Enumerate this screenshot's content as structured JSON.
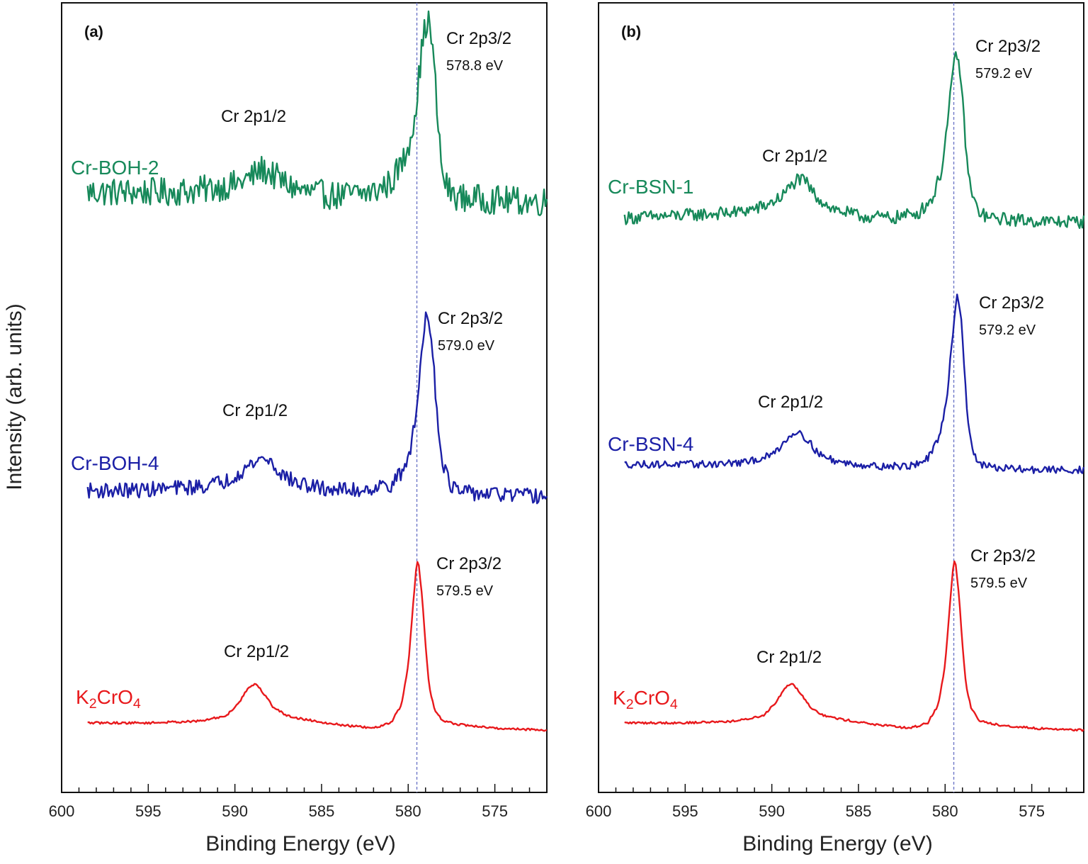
{
  "figure": {
    "ylabel": "Intensity (arb. units)"
  },
  "chart_data": [
    {
      "panel_label": "(a)",
      "type": "line",
      "xlabel": "Binding Energy (eV)",
      "ylabel": "Intensity (arb. units)",
      "xlim": [
        600,
        572
      ],
      "x_reversed": true,
      "xticks": [
        600,
        595,
        590,
        585,
        580,
        575
      ],
      "minor_tick_step": 1,
      "reference_line_x": 579.5,
      "y_ticks_shown": false,
      "grid": false,
      "series": [
        {
          "name": "Cr-BOH-2",
          "color": "#17895a",
          "noise": 0.075,
          "offset": 2.05,
          "x": [
            598.5,
            596,
            594,
            592,
            590,
            589,
            588.5,
            588,
            587,
            586,
            584,
            582,
            581,
            580.2,
            579.8,
            579.5,
            579.3,
            579.1,
            578.9,
            578.8,
            578.6,
            578.4,
            578.2,
            578,
            577.6,
            577,
            575,
            573,
            572
          ],
          "y": [
            0.1,
            0.1,
            0.1,
            0.11,
            0.14,
            0.18,
            0.22,
            0.2,
            0.14,
            0.1,
            0.08,
            0.1,
            0.15,
            0.28,
            0.42,
            0.58,
            0.78,
            0.92,
            1.0,
            0.98,
            0.86,
            0.62,
            0.35,
            0.18,
            0.1,
            0.07,
            0.06,
            0.05,
            0.05
          ],
          "peaks": [
            {
              "label": "Cr 2p1/2",
              "value": ""
            },
            {
              "label": "Cr 2p3/2",
              "value": "578.8 eV"
            }
          ]
        },
        {
          "name": "Cr-BOH-4",
          "color": "#1b1fa6",
          "noise": 0.04,
          "offset": 1.0,
          "x": [
            598.5,
            596,
            594,
            592,
            590.5,
            589.5,
            588.5,
            588,
            587.5,
            586.5,
            585,
            583,
            581,
            580.2,
            579.8,
            579.5,
            579.3,
            579.1,
            579,
            578.9,
            578.7,
            578.5,
            578.3,
            578,
            577.6,
            577,
            575,
            573,
            572
          ],
          "y": [
            0.03,
            0.03,
            0.04,
            0.05,
            0.08,
            0.14,
            0.2,
            0.19,
            0.13,
            0.07,
            0.04,
            0.03,
            0.06,
            0.14,
            0.28,
            0.46,
            0.68,
            0.86,
            0.95,
            0.96,
            0.88,
            0.66,
            0.38,
            0.18,
            0.06,
            0.02,
            0.01,
            0.0,
            0.0
          ],
          "peaks": [
            {
              "label": "Cr 2p1/2",
              "value": ""
            },
            {
              "label": "Cr 2p3/2",
              "value": "579.0 eV"
            }
          ]
        },
        {
          "name": "K2CrO4",
          "color": "#e8191c",
          "noise": 0.006,
          "offset": 0.0,
          "x": [
            598.5,
            595,
            592,
            590.5,
            589.8,
            589.2,
            588.8,
            588.3,
            587.8,
            587,
            586,
            584,
            582,
            581,
            580.4,
            580,
            579.8,
            579.6,
            579.5,
            579.4,
            579.2,
            579,
            578.8,
            578.5,
            578,
            577,
            575,
            572
          ],
          "y": [
            0.04,
            0.04,
            0.05,
            0.08,
            0.15,
            0.24,
            0.26,
            0.2,
            0.13,
            0.08,
            0.06,
            0.03,
            0.01,
            0.04,
            0.14,
            0.36,
            0.6,
            0.84,
            0.94,
            0.93,
            0.75,
            0.48,
            0.25,
            0.12,
            0.05,
            0.03,
            0.01,
            0.0
          ],
          "peaks": [
            {
              "label": "Cr 2p1/2",
              "value": ""
            },
            {
              "label": "Cr 2p3/2",
              "value": "579.5 eV"
            }
          ]
        }
      ]
    },
    {
      "panel_label": "(b)",
      "type": "line",
      "xlabel": "Binding Energy (eV)",
      "ylabel": "Intensity (arb. units)",
      "xlim": [
        600,
        572
      ],
      "x_reversed": true,
      "xticks": [
        600,
        595,
        590,
        585,
        580,
        575
      ],
      "minor_tick_step": 1,
      "reference_line_x": 579.5,
      "y_ticks_shown": false,
      "grid": false,
      "series": [
        {
          "name": "Cr-BSN-1",
          "color": "#17895a",
          "noise": 0.035,
          "offset": 2.0,
          "x": [
            598.5,
            596,
            594,
            592,
            590.5,
            589.5,
            589,
            588.5,
            588,
            587.5,
            586.5,
            585,
            583,
            581.5,
            580.7,
            580.2,
            579.9,
            579.6,
            579.4,
            579.3,
            579.1,
            578.9,
            578.7,
            578.4,
            578,
            577.5,
            576,
            574,
            572
          ],
          "y": [
            0.04,
            0.05,
            0.06,
            0.07,
            0.1,
            0.15,
            0.2,
            0.25,
            0.23,
            0.16,
            0.09,
            0.05,
            0.04,
            0.07,
            0.15,
            0.3,
            0.52,
            0.78,
            0.92,
            0.92,
            0.8,
            0.55,
            0.3,
            0.14,
            0.07,
            0.04,
            0.03,
            0.02,
            0.02
          ],
          "peaks": [
            {
              "label": "Cr 2p1/2",
              "value": ""
            },
            {
              "label": "Cr 2p3/2",
              "value": "579.2 eV"
            }
          ]
        },
        {
          "name": "Cr-BSN-4",
          "color": "#1b1fa6",
          "noise": 0.02,
          "offset": 1.0,
          "x": [
            598.5,
            596,
            594,
            591.5,
            590,
            589.3,
            588.8,
            588.4,
            588,
            587.5,
            587,
            586,
            584,
            582,
            581,
            580.3,
            579.9,
            579.6,
            579.4,
            579.3,
            579.1,
            578.9,
            578.7,
            578.4,
            578,
            577,
            575,
            572
          ],
          "y": [
            0.05,
            0.05,
            0.05,
            0.06,
            0.1,
            0.17,
            0.22,
            0.23,
            0.19,
            0.13,
            0.09,
            0.06,
            0.04,
            0.04,
            0.08,
            0.2,
            0.42,
            0.72,
            0.93,
            0.97,
            0.88,
            0.6,
            0.3,
            0.12,
            0.05,
            0.03,
            0.02,
            0.02
          ],
          "peaks": [
            {
              "label": "Cr 2p1/2",
              "value": ""
            },
            {
              "label": "Cr 2p3/2",
              "value": "579.2 eV"
            }
          ]
        },
        {
          "name": "K2CrO4",
          "color": "#e8191c",
          "noise": 0.006,
          "offset": 0.0,
          "x": [
            598.5,
            595,
            592,
            590.5,
            589.8,
            589.2,
            588.8,
            588.3,
            587.8,
            587,
            586,
            584,
            582,
            581,
            580.4,
            580,
            579.8,
            579.6,
            579.5,
            579.4,
            579.2,
            579,
            578.8,
            578.5,
            578,
            577,
            575,
            572
          ],
          "y": [
            0.04,
            0.04,
            0.05,
            0.08,
            0.15,
            0.24,
            0.26,
            0.2,
            0.13,
            0.08,
            0.06,
            0.03,
            0.01,
            0.04,
            0.14,
            0.36,
            0.6,
            0.84,
            0.94,
            0.93,
            0.75,
            0.48,
            0.25,
            0.12,
            0.05,
            0.03,
            0.01,
            0.0
          ],
          "peaks": [
            {
              "label": "Cr 2p1/2",
              "value": ""
            },
            {
              "label": "Cr 2p3/2",
              "value": "579.5 eV"
            }
          ]
        }
      ]
    }
  ]
}
